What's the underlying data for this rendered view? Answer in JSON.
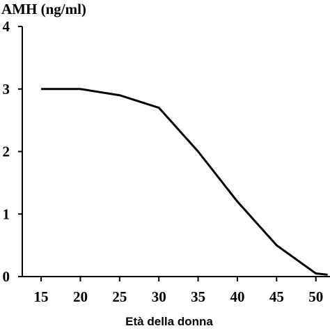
{
  "chart_data": {
    "type": "line",
    "title": "AMH (ng/ml)",
    "x_label": "Età della donna",
    "x": [
      15,
      20,
      25,
      30,
      35,
      40,
      45,
      50,
      51.5
    ],
    "series": [
      {
        "name": "AMH",
        "color": "#000000",
        "values": [
          3,
          3,
          2.9,
          2.7,
          2.0,
          1.2,
          0.5,
          0.05,
          0.03
        ]
      }
    ],
    "xlim": [
      12.6,
      51.8
    ],
    "ylim": [
      0,
      4
    ],
    "xticks": [
      15,
      20,
      25,
      30,
      35,
      40,
      45,
      50
    ],
    "yticks": [
      0,
      1,
      2,
      3,
      4
    ]
  }
}
